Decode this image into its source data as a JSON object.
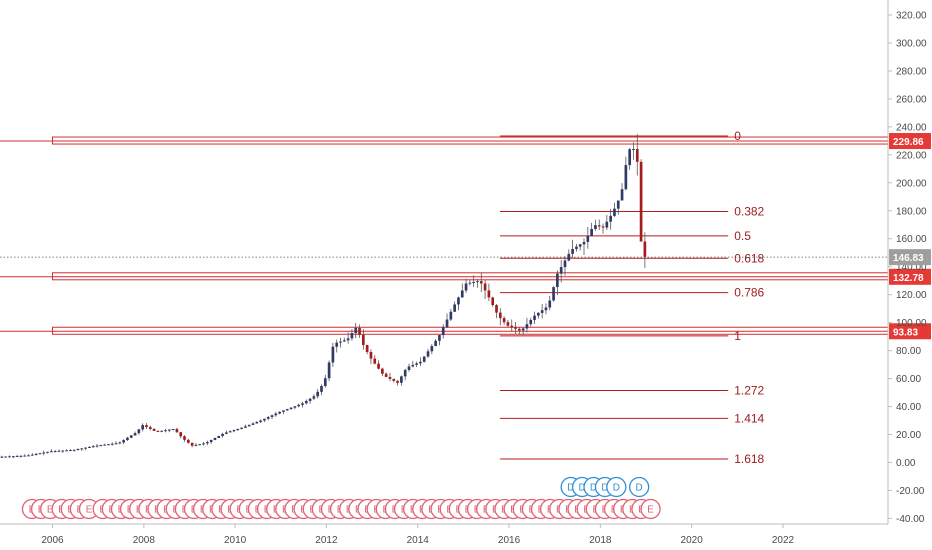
{
  "colors": {
    "up": "#2f3a66",
    "down": "#a31b1b",
    "wick": "#555555",
    "level": "#d32f2f",
    "fib": "#b71c1c",
    "badge": "#e53935",
    "earnings": "#e06070",
    "dividend": "#2f8fd6",
    "axis": "#bdbdbd",
    "last_price_badge": "#9e9e9e"
  },
  "chart_data": {
    "type": "candlestick",
    "x_axis": {
      "ticks": [
        "2006",
        "2008",
        "2010",
        "2012",
        "2014",
        "2016",
        "2018",
        "2020",
        "2022"
      ],
      "range": [
        2004.85,
        2024.3
      ]
    },
    "y_axis": {
      "ticks": [
        "-40.00",
        "-20.00",
        "0.00",
        "20.00",
        "40.00",
        "60.00",
        "80.00",
        "100.00",
        "120.00",
        "140.00",
        "160.00",
        "180.00",
        "200.00",
        "220.00",
        "240.00",
        "260.00",
        "280.00",
        "300.00",
        "320.00"
      ],
      "range": [
        -44,
        325
      ]
    },
    "last_price": "146.83",
    "levels": [
      {
        "value": 229.86,
        "label": "229.86"
      },
      {
        "value": 132.78,
        "label": "132.78"
      },
      {
        "value": 93.83,
        "label": "93.83"
      }
    ],
    "fibonacci": {
      "x_start": 2015.8,
      "x_end": 2020.8,
      "levels": [
        {
          "ratio": "0",
          "value": 233.5
        },
        {
          "ratio": "0.382",
          "value": 179.5
        },
        {
          "ratio": "0.5",
          "value": 162
        },
        {
          "ratio": "0.618",
          "value": 146
        },
        {
          "ratio": "0.786",
          "value": 121.5
        },
        {
          "ratio": "1",
          "value": 90.5
        },
        {
          "ratio": "1.272",
          "value": 51.5
        },
        {
          "ratio": "1.414",
          "value": 31.5
        },
        {
          "ratio": "1.618",
          "value": 2.5
        }
      ]
    },
    "candles_anchor_series": [
      [
        2004.85,
        4
      ],
      [
        2005.5,
        5
      ],
      [
        2006.0,
        8
      ],
      [
        2006.5,
        9
      ],
      [
        2007.0,
        12
      ],
      [
        2007.5,
        14
      ],
      [
        2007.9,
        22
      ],
      [
        2008.0,
        27
      ],
      [
        2008.3,
        22
      ],
      [
        2008.7,
        24
      ],
      [
        2008.9,
        17
      ],
      [
        2009.1,
        12
      ],
      [
        2009.4,
        14
      ],
      [
        2009.8,
        21
      ],
      [
        2010.2,
        25
      ],
      [
        2010.6,
        30
      ],
      [
        2011.0,
        36
      ],
      [
        2011.5,
        42
      ],
      [
        2011.8,
        48
      ],
      [
        2012.0,
        58
      ],
      [
        2012.2,
        85
      ],
      [
        2012.5,
        88
      ],
      [
        2012.7,
        97
      ],
      [
        2012.85,
        84
      ],
      [
        2013.0,
        75
      ],
      [
        2013.3,
        62
      ],
      [
        2013.6,
        57
      ],
      [
        2013.8,
        68
      ],
      [
        2014.1,
        72
      ],
      [
        2014.5,
        90
      ],
      [
        2014.8,
        110
      ],
      [
        2015.1,
        128
      ],
      [
        2015.4,
        130
      ],
      [
        2015.6,
        118
      ],
      [
        2015.8,
        105
      ],
      [
        2016.0,
        98
      ],
      [
        2016.3,
        94
      ],
      [
        2016.6,
        105
      ],
      [
        2016.9,
        112
      ],
      [
        2017.1,
        135
      ],
      [
        2017.4,
        152
      ],
      [
        2017.7,
        158
      ],
      [
        2017.9,
        170
      ],
      [
        2018.1,
        168
      ],
      [
        2018.3,
        178
      ],
      [
        2018.5,
        192
      ],
      [
        2018.65,
        223
      ],
      [
        2018.75,
        226
      ],
      [
        2018.85,
        215
      ],
      [
        2018.9,
        180
      ],
      [
        2018.95,
        147
      ]
    ],
    "earnings_markers": {
      "label": "E",
      "years": [
        2005.55,
        2005.75,
        2005.95,
        2006.2,
        2006.4,
        2006.6,
        2006.8,
        2007.1,
        2007.3,
        2007.5,
        2007.7,
        2007.9,
        2008.1,
        2008.3,
        2008.5,
        2008.7,
        2008.9,
        2009.1,
        2009.3,
        2009.5,
        2009.7,
        2009.9,
        2010.1,
        2010.3,
        2010.5,
        2010.7,
        2010.9,
        2011.1,
        2011.3,
        2011.5,
        2011.7,
        2011.9,
        2012.1,
        2012.3,
        2012.5,
        2012.7,
        2012.9,
        2013.1,
        2013.3,
        2013.5,
        2013.7,
        2013.9,
        2014.1,
        2014.3,
        2014.5,
        2014.7,
        2014.9,
        2015.1,
        2015.3,
        2015.5,
        2015.7,
        2015.9,
        2016.1,
        2016.3,
        2016.5,
        2016.7,
        2016.9,
        2017.1,
        2017.3,
        2017.5,
        2017.7,
        2017.9,
        2018.1,
        2018.3,
        2018.5,
        2018.7,
        2018.9,
        2019.1
      ]
    },
    "dividend_markers": {
      "label": "D",
      "years": [
        2017.35,
        2017.6,
        2017.85,
        2018.1,
        2018.35,
        2018.85
      ]
    }
  }
}
